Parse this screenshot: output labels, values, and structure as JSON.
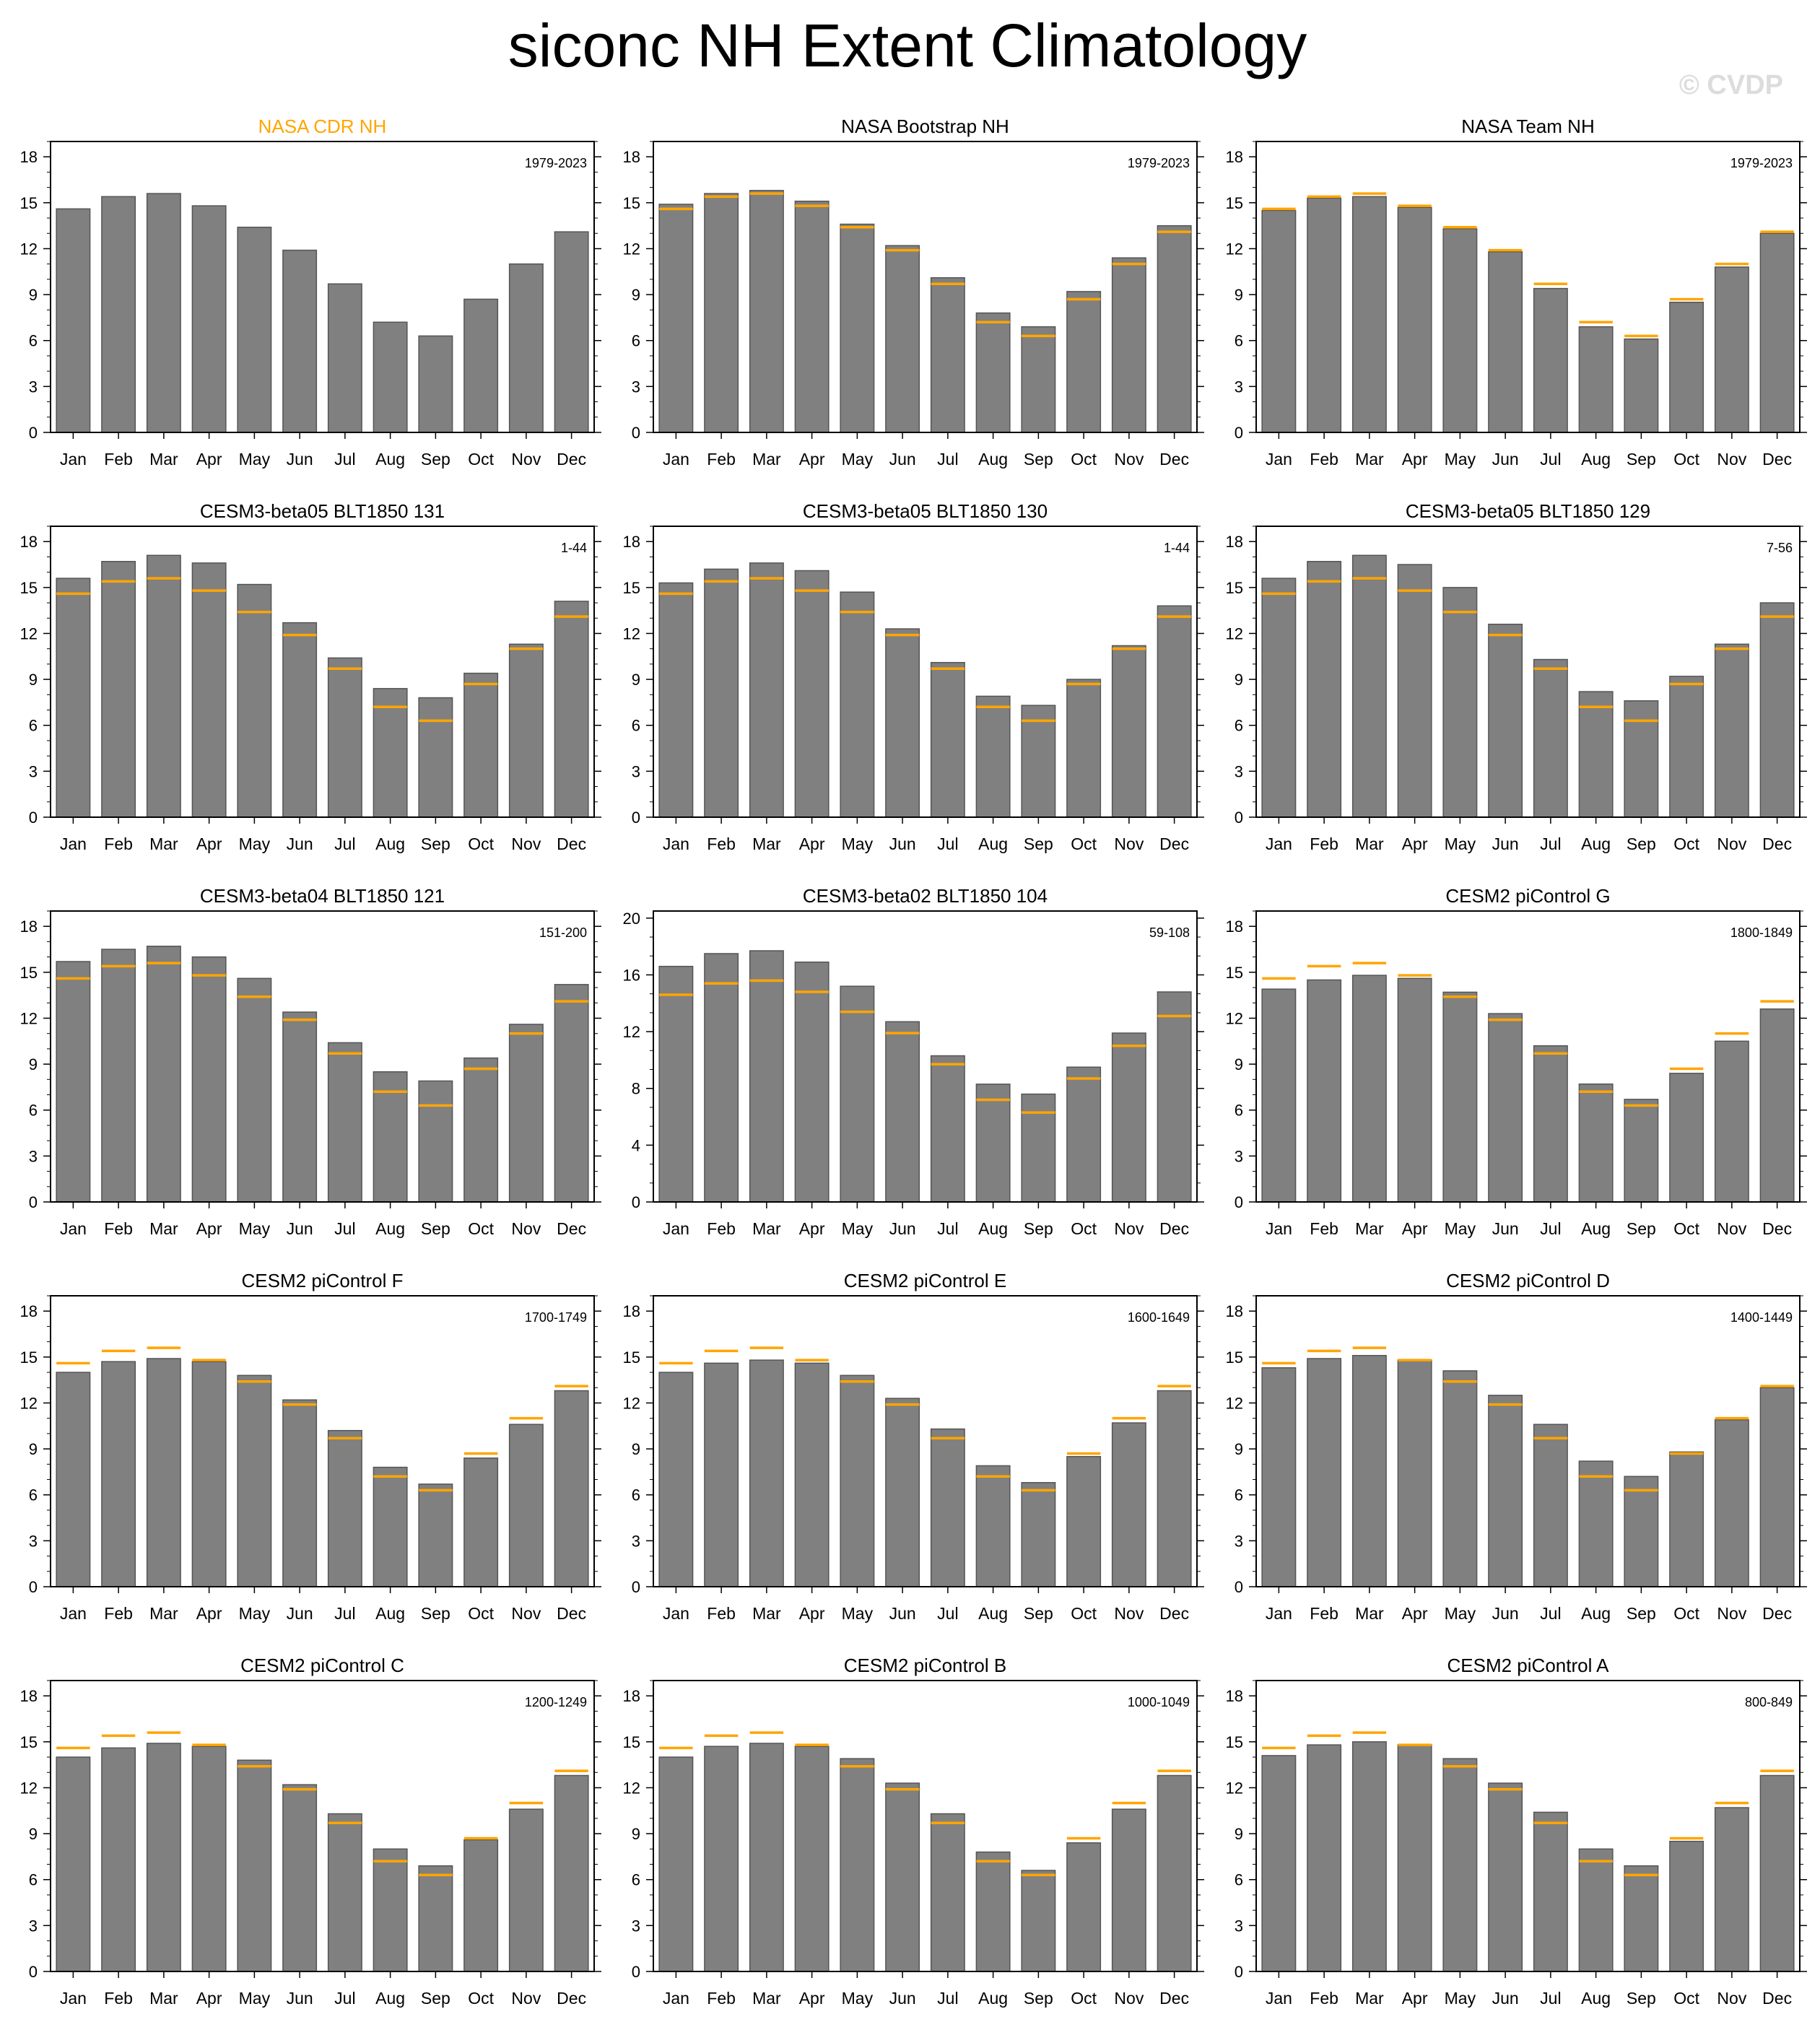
{
  "title": "siconc NH Extent Climatology",
  "watermark": "© CVDP",
  "colors": {
    "bar": "#808080",
    "bar_edge": "#555555",
    "obs_line": "#ffa500",
    "obs_title": "#ffa500"
  },
  "chart_data": [
    {
      "type": "bar",
      "title": "NASA CDR NH",
      "title_color": "#ffa500",
      "period": "1979-2023",
      "categories": [
        "Jan",
        "Feb",
        "Mar",
        "Apr",
        "May",
        "Jun",
        "Jul",
        "Aug",
        "Sep",
        "Oct",
        "Nov",
        "Dec"
      ],
      "ylim": [
        0,
        19
      ],
      "yticks": [
        0,
        3,
        6,
        9,
        12,
        15,
        18
      ],
      "values": [
        14.6,
        15.4,
        15.6,
        14.8,
        13.4,
        11.9,
        9.7,
        7.2,
        6.3,
        8.7,
        11.0,
        13.1
      ]
    },
    {
      "type": "bar",
      "title": "NASA Bootstrap NH",
      "period": "1979-2023",
      "categories": [
        "Jan",
        "Feb",
        "Mar",
        "Apr",
        "May",
        "Jun",
        "Jul",
        "Aug",
        "Sep",
        "Oct",
        "Nov",
        "Dec"
      ],
      "ylim": [
        0,
        19
      ],
      "yticks": [
        0,
        3,
        6,
        9,
        12,
        15,
        18
      ],
      "values": [
        14.9,
        15.6,
        15.8,
        15.1,
        13.6,
        12.2,
        10.1,
        7.8,
        6.9,
        9.2,
        11.4,
        13.5
      ],
      "obs": [
        14.6,
        15.4,
        15.6,
        14.8,
        13.4,
        11.9,
        9.7,
        7.2,
        6.3,
        8.7,
        11.0,
        13.1
      ]
    },
    {
      "type": "bar",
      "title": "NASA Team NH",
      "period": "1979-2023",
      "categories": [
        "Jan",
        "Feb",
        "Mar",
        "Apr",
        "May",
        "Jun",
        "Jul",
        "Aug",
        "Sep",
        "Oct",
        "Nov",
        "Dec"
      ],
      "ylim": [
        0,
        19
      ],
      "yticks": [
        0,
        3,
        6,
        9,
        12,
        15,
        18
      ],
      "values": [
        14.5,
        15.3,
        15.4,
        14.7,
        13.3,
        11.8,
        9.4,
        6.9,
        6.1,
        8.5,
        10.8,
        13.0
      ],
      "obs": [
        14.6,
        15.4,
        15.6,
        14.8,
        13.4,
        11.9,
        9.7,
        7.2,
        6.3,
        8.7,
        11.0,
        13.1
      ]
    },
    {
      "type": "bar",
      "title": "CESM3-beta05 BLT1850 131",
      "period": "1-44",
      "categories": [
        "Jan",
        "Feb",
        "Mar",
        "Apr",
        "May",
        "Jun",
        "Jul",
        "Aug",
        "Sep",
        "Oct",
        "Nov",
        "Dec"
      ],
      "ylim": [
        0,
        19
      ],
      "yticks": [
        0,
        3,
        6,
        9,
        12,
        15,
        18
      ],
      "values": [
        15.6,
        16.7,
        17.1,
        16.6,
        15.2,
        12.7,
        10.4,
        8.4,
        7.8,
        9.4,
        11.3,
        14.1
      ],
      "obs": [
        14.6,
        15.4,
        15.6,
        14.8,
        13.4,
        11.9,
        9.7,
        7.2,
        6.3,
        8.7,
        11.0,
        13.1
      ]
    },
    {
      "type": "bar",
      "title": "CESM3-beta05 BLT1850 130",
      "period": "1-44",
      "categories": [
        "Jan",
        "Feb",
        "Mar",
        "Apr",
        "May",
        "Jun",
        "Jul",
        "Aug",
        "Sep",
        "Oct",
        "Nov",
        "Dec"
      ],
      "ylim": [
        0,
        19
      ],
      "yticks": [
        0,
        3,
        6,
        9,
        12,
        15,
        18
      ],
      "values": [
        15.3,
        16.2,
        16.6,
        16.1,
        14.7,
        12.3,
        10.1,
        7.9,
        7.3,
        9.0,
        11.2,
        13.8
      ],
      "obs": [
        14.6,
        15.4,
        15.6,
        14.8,
        13.4,
        11.9,
        9.7,
        7.2,
        6.3,
        8.7,
        11.0,
        13.1
      ]
    },
    {
      "type": "bar",
      "title": "CESM3-beta05 BLT1850 129",
      "period": "7-56",
      "categories": [
        "Jan",
        "Feb",
        "Mar",
        "Apr",
        "May",
        "Jun",
        "Jul",
        "Aug",
        "Sep",
        "Oct",
        "Nov",
        "Dec"
      ],
      "ylim": [
        0,
        19
      ],
      "yticks": [
        0,
        3,
        6,
        9,
        12,
        15,
        18
      ],
      "values": [
        15.6,
        16.7,
        17.1,
        16.5,
        15.0,
        12.6,
        10.3,
        8.2,
        7.6,
        9.2,
        11.3,
        14.0
      ],
      "obs": [
        14.6,
        15.4,
        15.6,
        14.8,
        13.4,
        11.9,
        9.7,
        7.2,
        6.3,
        8.7,
        11.0,
        13.1
      ]
    },
    {
      "type": "bar",
      "title": "CESM3-beta04 BLT1850 121",
      "period": "151-200",
      "categories": [
        "Jan",
        "Feb",
        "Mar",
        "Apr",
        "May",
        "Jun",
        "Jul",
        "Aug",
        "Sep",
        "Oct",
        "Nov",
        "Dec"
      ],
      "ylim": [
        0,
        19
      ],
      "yticks": [
        0,
        3,
        6,
        9,
        12,
        15,
        18
      ],
      "values": [
        15.7,
        16.5,
        16.7,
        16.0,
        14.6,
        12.4,
        10.4,
        8.5,
        7.9,
        9.4,
        11.6,
        14.2
      ],
      "obs": [
        14.6,
        15.4,
        15.6,
        14.8,
        13.4,
        11.9,
        9.7,
        7.2,
        6.3,
        8.7,
        11.0,
        13.1
      ]
    },
    {
      "type": "bar",
      "title": "CESM3-beta02 BLT1850 104",
      "period": "59-108",
      "categories": [
        "Jan",
        "Feb",
        "Mar",
        "Apr",
        "May",
        "Jun",
        "Jul",
        "Aug",
        "Sep",
        "Oct",
        "Nov",
        "Dec"
      ],
      "ylim": [
        0,
        20.5
      ],
      "yticks": [
        0,
        4,
        8,
        12,
        16,
        20
      ],
      "values": [
        16.6,
        17.5,
        17.7,
        16.9,
        15.2,
        12.7,
        10.3,
        8.3,
        7.6,
        9.5,
        11.9,
        14.8
      ],
      "obs": [
        14.6,
        15.4,
        15.6,
        14.8,
        13.4,
        11.9,
        9.7,
        7.2,
        6.3,
        8.7,
        11.0,
        13.1
      ]
    },
    {
      "type": "bar",
      "title": "CESM2 piControl G",
      "period": "1800-1849",
      "categories": [
        "Jan",
        "Feb",
        "Mar",
        "Apr",
        "May",
        "Jun",
        "Jul",
        "Aug",
        "Sep",
        "Oct",
        "Nov",
        "Dec"
      ],
      "ylim": [
        0,
        19
      ],
      "yticks": [
        0,
        3,
        6,
        9,
        12,
        15,
        18
      ],
      "values": [
        13.9,
        14.5,
        14.8,
        14.6,
        13.7,
        12.3,
        10.2,
        7.7,
        6.7,
        8.4,
        10.5,
        12.6
      ],
      "obs": [
        14.6,
        15.4,
        15.6,
        14.8,
        13.4,
        11.9,
        9.7,
        7.2,
        6.3,
        8.7,
        11.0,
        13.1
      ]
    },
    {
      "type": "bar",
      "title": "CESM2 piControl F",
      "period": "1700-1749",
      "categories": [
        "Jan",
        "Feb",
        "Mar",
        "Apr",
        "May",
        "Jun",
        "Jul",
        "Aug",
        "Sep",
        "Oct",
        "Nov",
        "Dec"
      ],
      "ylim": [
        0,
        19
      ],
      "yticks": [
        0,
        3,
        6,
        9,
        12,
        15,
        18
      ],
      "values": [
        14.0,
        14.7,
        14.9,
        14.7,
        13.8,
        12.2,
        10.2,
        7.8,
        6.7,
        8.4,
        10.6,
        12.8
      ],
      "obs": [
        14.6,
        15.4,
        15.6,
        14.8,
        13.4,
        11.9,
        9.7,
        7.2,
        6.3,
        8.7,
        11.0,
        13.1
      ]
    },
    {
      "type": "bar",
      "title": "CESM2 piControl E",
      "period": "1600-1649",
      "categories": [
        "Jan",
        "Feb",
        "Mar",
        "Apr",
        "May",
        "Jun",
        "Jul",
        "Aug",
        "Sep",
        "Oct",
        "Nov",
        "Dec"
      ],
      "ylim": [
        0,
        19
      ],
      "yticks": [
        0,
        3,
        6,
        9,
        12,
        15,
        18
      ],
      "values": [
        14.0,
        14.6,
        14.8,
        14.6,
        13.8,
        12.3,
        10.3,
        7.9,
        6.8,
        8.5,
        10.7,
        12.8
      ],
      "obs": [
        14.6,
        15.4,
        15.6,
        14.8,
        13.4,
        11.9,
        9.7,
        7.2,
        6.3,
        8.7,
        11.0,
        13.1
      ]
    },
    {
      "type": "bar",
      "title": "CESM2 piControl D",
      "period": "1400-1449",
      "categories": [
        "Jan",
        "Feb",
        "Mar",
        "Apr",
        "May",
        "Jun",
        "Jul",
        "Aug",
        "Sep",
        "Oct",
        "Nov",
        "Dec"
      ],
      "ylim": [
        0,
        19
      ],
      "yticks": [
        0,
        3,
        6,
        9,
        12,
        15,
        18
      ],
      "values": [
        14.3,
        14.9,
        15.1,
        14.8,
        14.1,
        12.5,
        10.6,
        8.2,
        7.2,
        8.8,
        10.9,
        13.0
      ],
      "obs": [
        14.6,
        15.4,
        15.6,
        14.8,
        13.4,
        11.9,
        9.7,
        7.2,
        6.3,
        8.7,
        11.0,
        13.1
      ]
    },
    {
      "type": "bar",
      "title": "CESM2 piControl C",
      "period": "1200-1249",
      "categories": [
        "Jan",
        "Feb",
        "Mar",
        "Apr",
        "May",
        "Jun",
        "Jul",
        "Aug",
        "Sep",
        "Oct",
        "Nov",
        "Dec"
      ],
      "ylim": [
        0,
        19
      ],
      "yticks": [
        0,
        3,
        6,
        9,
        12,
        15,
        18
      ],
      "values": [
        14.0,
        14.6,
        14.9,
        14.7,
        13.8,
        12.2,
        10.3,
        8.0,
        6.9,
        8.6,
        10.6,
        12.8
      ],
      "obs": [
        14.6,
        15.4,
        15.6,
        14.8,
        13.4,
        11.9,
        9.7,
        7.2,
        6.3,
        8.7,
        11.0,
        13.1
      ]
    },
    {
      "type": "bar",
      "title": "CESM2 piControl B",
      "period": "1000-1049",
      "categories": [
        "Jan",
        "Feb",
        "Mar",
        "Apr",
        "May",
        "Jun",
        "Jul",
        "Aug",
        "Sep",
        "Oct",
        "Nov",
        "Dec"
      ],
      "ylim": [
        0,
        19
      ],
      "yticks": [
        0,
        3,
        6,
        9,
        12,
        15,
        18
      ],
      "values": [
        14.0,
        14.7,
        14.9,
        14.7,
        13.9,
        12.3,
        10.3,
        7.8,
        6.6,
        8.4,
        10.6,
        12.8
      ],
      "obs": [
        14.6,
        15.4,
        15.6,
        14.8,
        13.4,
        11.9,
        9.7,
        7.2,
        6.3,
        8.7,
        11.0,
        13.1
      ]
    },
    {
      "type": "bar",
      "title": "CESM2 piControl A",
      "period": "800-849",
      "categories": [
        "Jan",
        "Feb",
        "Mar",
        "Apr",
        "May",
        "Jun",
        "Jul",
        "Aug",
        "Sep",
        "Oct",
        "Nov",
        "Dec"
      ],
      "ylim": [
        0,
        19
      ],
      "yticks": [
        0,
        3,
        6,
        9,
        12,
        15,
        18
      ],
      "values": [
        14.1,
        14.8,
        15.0,
        14.8,
        13.9,
        12.3,
        10.4,
        8.0,
        6.9,
        8.5,
        10.7,
        12.8
      ],
      "obs": [
        14.6,
        15.4,
        15.6,
        14.8,
        13.4,
        11.9,
        9.7,
        7.2,
        6.3,
        8.7,
        11.0,
        13.1
      ]
    }
  ]
}
